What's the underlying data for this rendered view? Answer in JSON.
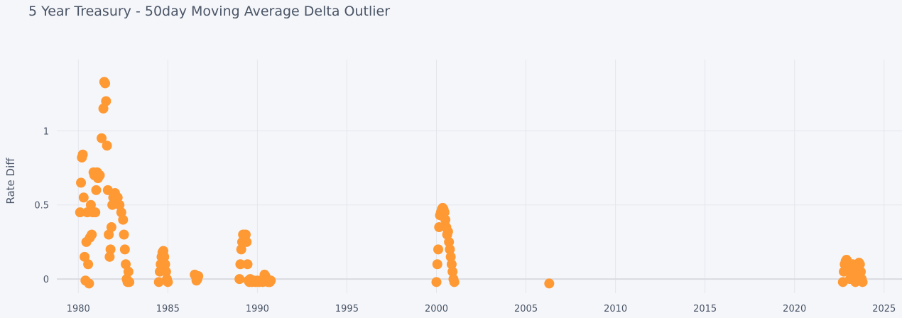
{
  "chart_data": {
    "type": "scatter",
    "title": "5 Year Treasury - 50day Moving Average Delta Outlier",
    "xlabel": "",
    "ylabel": "Rate Diff",
    "xlim": [
      1978.8,
      2026.0
    ],
    "ylim": [
      -0.095,
      1.48
    ],
    "x_ticks": [
      1980,
      1985,
      1990,
      1995,
      2000,
      2005,
      2010,
      2015,
      2020,
      2025
    ],
    "y_ticks": [
      0,
      0.5,
      1
    ],
    "y_tick_labels": [
      "0",
      "0.5",
      "1"
    ],
    "grid": true,
    "color": "#ff9933",
    "highlighted_gridline_x": 1985,
    "series": [
      {
        "name": "",
        "x": [
          1980.1,
          1980.15,
          1980.2,
          1980.25,
          1980.3,
          1980.35,
          1980.4,
          1980.45,
          1980.5,
          1980.55,
          1980.6,
          1980.65,
          1980.7,
          1980.75,
          1980.8,
          1980.85,
          1980.9,
          1980.95,
          1981.0,
          1981.05,
          1981.1,
          1981.2,
          1981.3,
          1981.4,
          1981.45,
          1981.5,
          1981.55,
          1981.6,
          1981.65,
          1981.7,
          1981.75,
          1981.8,
          1981.85,
          1981.9,
          1981.95,
          1982.0,
          1982.05,
          1982.1,
          1982.15,
          1982.2,
          1982.3,
          1982.4,
          1982.5,
          1982.55,
          1982.6,
          1982.65,
          1982.7,
          1982.75,
          1982.8,
          1982.85,
          1984.5,
          1984.55,
          1984.6,
          1984.65,
          1984.7,
          1984.75,
          1984.8,
          1984.85,
          1984.9,
          1984.95,
          1985.0,
          1986.5,
          1986.55,
          1986.6,
          1986.65,
          1986.7,
          1989.0,
          1989.05,
          1989.1,
          1989.15,
          1989.2,
          1989.25,
          1989.3,
          1989.35,
          1989.4,
          1989.45,
          1989.5,
          1989.55,
          1989.6,
          1989.7,
          1989.8,
          1989.9,
          1990.0,
          1990.1,
          1990.2,
          1990.3,
          1990.4,
          1990.45,
          1990.5,
          1990.55,
          1990.6,
          1990.65,
          1990.7,
          1990.75,
          2000.0,
          2000.05,
          2000.1,
          2000.15,
          2000.2,
          2000.25,
          2000.3,
          2000.35,
          2000.4,
          2000.45,
          2000.5,
          2000.55,
          2000.6,
          2000.65,
          2000.7,
          2000.75,
          2000.8,
          2000.85,
          2000.9,
          2000.95,
          2001.0,
          2006.3,
          2022.7,
          2022.75,
          2022.8,
          2022.85,
          2022.9,
          2022.95,
          2023.0,
          2023.05,
          2023.1,
          2023.15,
          2023.2,
          2023.25,
          2023.3,
          2023.35,
          2023.4,
          2023.45,
          2023.5,
          2023.55,
          2023.6,
          2023.65,
          2023.7,
          2023.75,
          2023.8
        ],
        "y": [
          0.45,
          0.65,
          0.82,
          0.84,
          0.55,
          0.15,
          -0.01,
          0.25,
          0.45,
          0.1,
          -0.03,
          0.28,
          0.5,
          0.3,
          0.45,
          0.72,
          0.7,
          0.45,
          0.6,
          0.72,
          0.68,
          0.7,
          0.95,
          1.15,
          1.33,
          1.32,
          1.2,
          0.9,
          0.6,
          0.3,
          0.15,
          0.2,
          0.35,
          0.5,
          0.55,
          0.57,
          0.58,
          0.55,
          0.52,
          0.55,
          0.5,
          0.45,
          0.4,
          0.3,
          0.2,
          0.1,
          0.0,
          -0.02,
          0.05,
          -0.02,
          -0.02,
          0.05,
          0.1,
          0.15,
          0.18,
          0.19,
          0.15,
          0.1,
          0.05,
          0.0,
          -0.02,
          0.03,
          0.02,
          -0.01,
          0.0,
          0.02,
          0.0,
          0.1,
          0.2,
          0.25,
          0.3,
          0.3,
          0.28,
          0.3,
          0.25,
          0.1,
          -0.01,
          -0.02,
          0.0,
          -0.02,
          -0.01,
          -0.02,
          -0.01,
          -0.02,
          -0.01,
          -0.02,
          0.03,
          0.02,
          -0.01,
          0.0,
          -0.02,
          -0.01,
          -0.02,
          -0.01,
          -0.02,
          0.1,
          0.2,
          0.35,
          0.43,
          0.45,
          0.47,
          0.48,
          0.47,
          0.45,
          0.4,
          0.35,
          0.3,
          0.32,
          0.25,
          0.2,
          0.15,
          0.1,
          0.05,
          0.0,
          -0.02,
          -0.03,
          -0.02,
          0.05,
          0.1,
          0.12,
          0.13,
          0.12,
          0.1,
          0.05,
          0.0,
          0.05,
          0.08,
          0.1,
          0.05,
          0.0,
          -0.02,
          0.0,
          0.05,
          0.1,
          0.11,
          0.1,
          0.05,
          0.0,
          -0.02
        ]
      }
    ]
  }
}
